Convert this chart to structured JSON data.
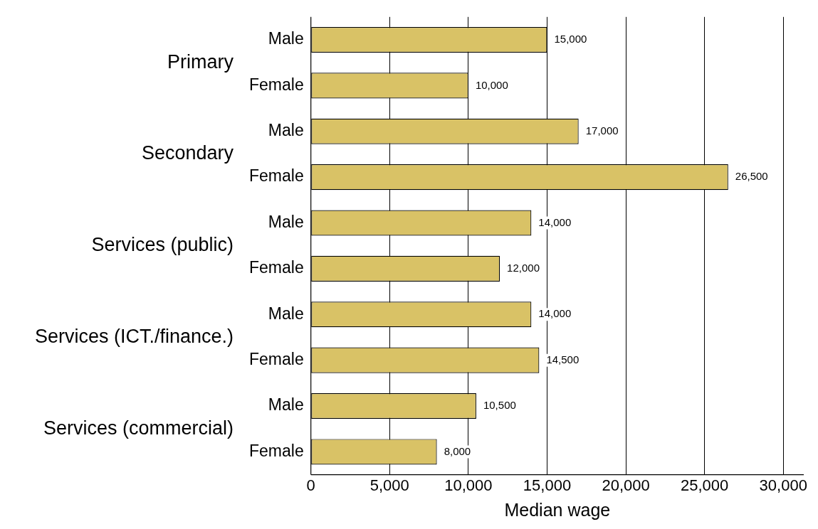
{
  "chart_data": {
    "type": "bar",
    "orientation": "horizontal",
    "xlabel": "Median wage",
    "categories": [
      "Male",
      "Female",
      "Male",
      "Female",
      "Male",
      "Female",
      "Male",
      "Female",
      "Male",
      "Female"
    ],
    "values": [
      15000,
      10000,
      17000,
      26500,
      14000,
      12000,
      14000,
      14500,
      10500,
      8000
    ],
    "color": "#d9c266",
    "xlim": [
      0,
      31300
    ],
    "xticks": [
      {
        "value": 0,
        "label": "0"
      },
      {
        "value": 5000,
        "label": "5,000"
      },
      {
        "value": 10000,
        "label": "10,000"
      },
      {
        "value": 15000,
        "label": "15,000"
      },
      {
        "value": 20000,
        "label": "20,000"
      },
      {
        "value": 25000,
        "label": "25,000"
      },
      {
        "value": 30000,
        "label": "30,000"
      }
    ],
    "annotations": [
      "Primary",
      "Secondary",
      "Services (public)",
      "Services (ICT./finance.)",
      "Services (commercial)"
    ],
    "value_labels": [
      "15,000",
      "10,000",
      "17,000",
      "26,500",
      "14,000",
      "12,000",
      "14,000",
      "14,500",
      "10,500",
      "8,000"
    ],
    "grid": "x",
    "legend": false
  }
}
